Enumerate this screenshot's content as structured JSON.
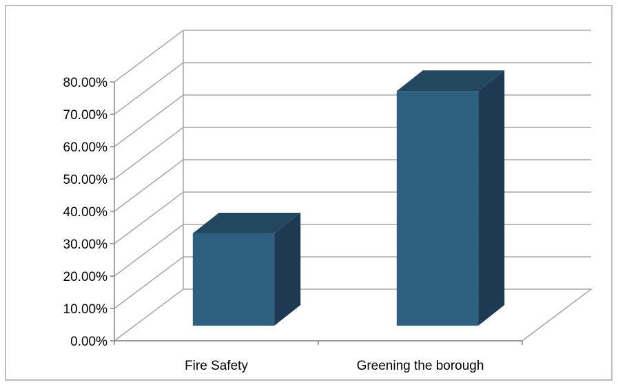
{
  "chart_data": {
    "type": "bar",
    "three_d": true,
    "categories": [
      "Fire Safety",
      "Greening the borough"
    ],
    "values": [
      28.5,
      72.5
    ],
    "title": "",
    "xlabel": "",
    "ylabel": "",
    "ylim": [
      0,
      80
    ],
    "ytick_values": [
      0,
      10,
      20,
      30,
      40,
      50,
      60,
      70,
      80
    ],
    "ytick_labels": [
      "0.00%",
      "10.00%",
      "20.00%",
      "30.00%",
      "40.00%",
      "50.00%",
      "60.00%",
      "70.00%",
      "80.00%"
    ],
    "grid": true,
    "legend": "none",
    "colors": {
      "bar_front": "#2c5f80",
      "bar_side": "#1d3a52",
      "bar_top": "#23475f",
      "grid": "#a6a6a6",
      "axis": "#868686"
    }
  }
}
